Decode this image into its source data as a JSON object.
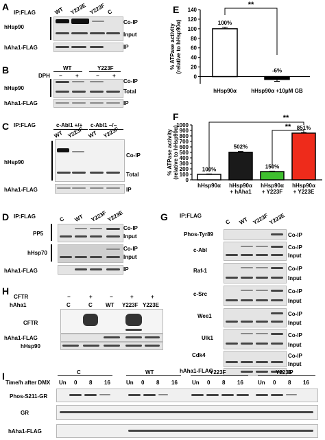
{
  "panels": {
    "A": {
      "letter": "A",
      "ip": "IP:FLAG",
      "lanes": [
        "WT",
        "Y223E",
        "Y223F",
        "C"
      ],
      "row_labels": [
        "hHsp90",
        "hAha1-FLAG"
      ],
      "right_labels": [
        "Co-IP",
        "Input",
        "IP"
      ]
    },
    "B": {
      "letter": "B",
      "group": "WT",
      "group2": "Y223F",
      "dph": "DPH",
      "signs": [
        "−",
        "+",
        "−",
        "+"
      ],
      "row_labels": [
        "hHsp90",
        "hAha1-FLAG"
      ],
      "right_labels": [
        "Co-IP",
        "Total",
        "IP"
      ]
    },
    "C": {
      "letter": "C",
      "ip": "IP:FLAG",
      "group1": "c-Abl1 +/+",
      "group2": "c-Abl1 −/−",
      "lanes": [
        "WT",
        "Y223F",
        "WT",
        "Y223F"
      ],
      "row_labels": [
        "hHsp90",
        "hAha1-FLAG"
      ],
      "right_labels": [
        "Co-IP",
        "Total",
        "IP"
      ]
    },
    "D": {
      "letter": "D",
      "ip": "IP:FLAG",
      "lanes": [
        "C",
        "WT",
        "Y223F",
        "Y223E"
      ],
      "row_labels": [
        "PP5",
        "hHsp70",
        "hAha1-FLAG"
      ],
      "right_labels": [
        "Co-IP",
        "Input",
        "Co-IP",
        "Input",
        "IP"
      ]
    },
    "E": {
      "letter": "E",
      "ylabel": "% ATPase activity\n(relative to hHsp90α)",
      "yticks": [
        "0",
        "20",
        "40",
        "60",
        "80",
        "100",
        "120",
        "140"
      ],
      "signif": "**"
    },
    "F": {
      "letter": "F",
      "ylabel": "% ATPase activity\n(relative to hHsp90α)",
      "yticks": [
        "0",
        "100",
        "200",
        "300",
        "400",
        "500",
        "600",
        "700",
        "800",
        "900",
        "1000"
      ],
      "signif1": "**",
      "signif2": "**"
    },
    "G": {
      "letter": "G",
      "ip": "IP:FLAG",
      "lanes": [
        "C",
        "WT",
        "Y223F",
        "Y223E"
      ],
      "row_labels": [
        "Phos-Tyr89",
        "c-Abl",
        "Raf-1",
        "c-Src",
        "Wee1",
        "Ulk1",
        "Cdk4",
        "hAha1-FLAG"
      ],
      "right_labels": [
        "Co-IP",
        "Input",
        "IP"
      ]
    },
    "H": {
      "letter": "H",
      "cftr_label": "CFTR",
      "aha_label": "hAha1",
      "cftr_signs": [
        "−",
        "+",
        "−",
        "+",
        "+"
      ],
      "aha_lanes": [
        "C",
        "C",
        "WT",
        "Y223F",
        "Y223E"
      ],
      "row_labels": [
        "CFTR",
        "hAha1-FLAG",
        "hHsp90"
      ]
    },
    "I": {
      "letter": "I",
      "groups": [
        "C",
        "WT",
        "Y223F",
        "Y223E"
      ],
      "time_label": "Time/h after DMX",
      "times": [
        "Un",
        "0",
        "8",
        "16"
      ],
      "row_labels": [
        "Phos-S211-GR",
        "GR",
        "hAha1-FLAG"
      ]
    }
  },
  "chart_data": [
    {
      "type": "bar",
      "panel": "E",
      "categories": [
        "hHsp90α",
        "hHsp90α +10μM GB"
      ],
      "values": [
        100,
        -6
      ],
      "errors": [
        3,
        4
      ],
      "data_labels": [
        "100%",
        "-6%"
      ],
      "colors": [
        "#ffffff",
        "#000000"
      ],
      "ylabel": "% ATPase activity (relative to hHsp90α)",
      "ylim": [
        -15,
        140
      ],
      "grid": false
    },
    {
      "type": "bar",
      "panel": "F",
      "categories": [
        "hHsp90α",
        "hHsp90α\n+ hAha1",
        "hHsp90α\n+ Y223F",
        "hHsp90α\n+ Y223E"
      ],
      "values": [
        100,
        502,
        150,
        851
      ],
      "errors": [
        8,
        15,
        8,
        12
      ],
      "data_labels": [
        "100%",
        "502%",
        "150%",
        "851%"
      ],
      "colors": [
        "#ffffff",
        "#1a1a1a",
        "#3fbf2f",
        "#ee2b1b"
      ],
      "ylabel": "% ATPase activity (relative to hHsp90α)",
      "ylim": [
        0,
        1000
      ],
      "grid": false
    }
  ]
}
